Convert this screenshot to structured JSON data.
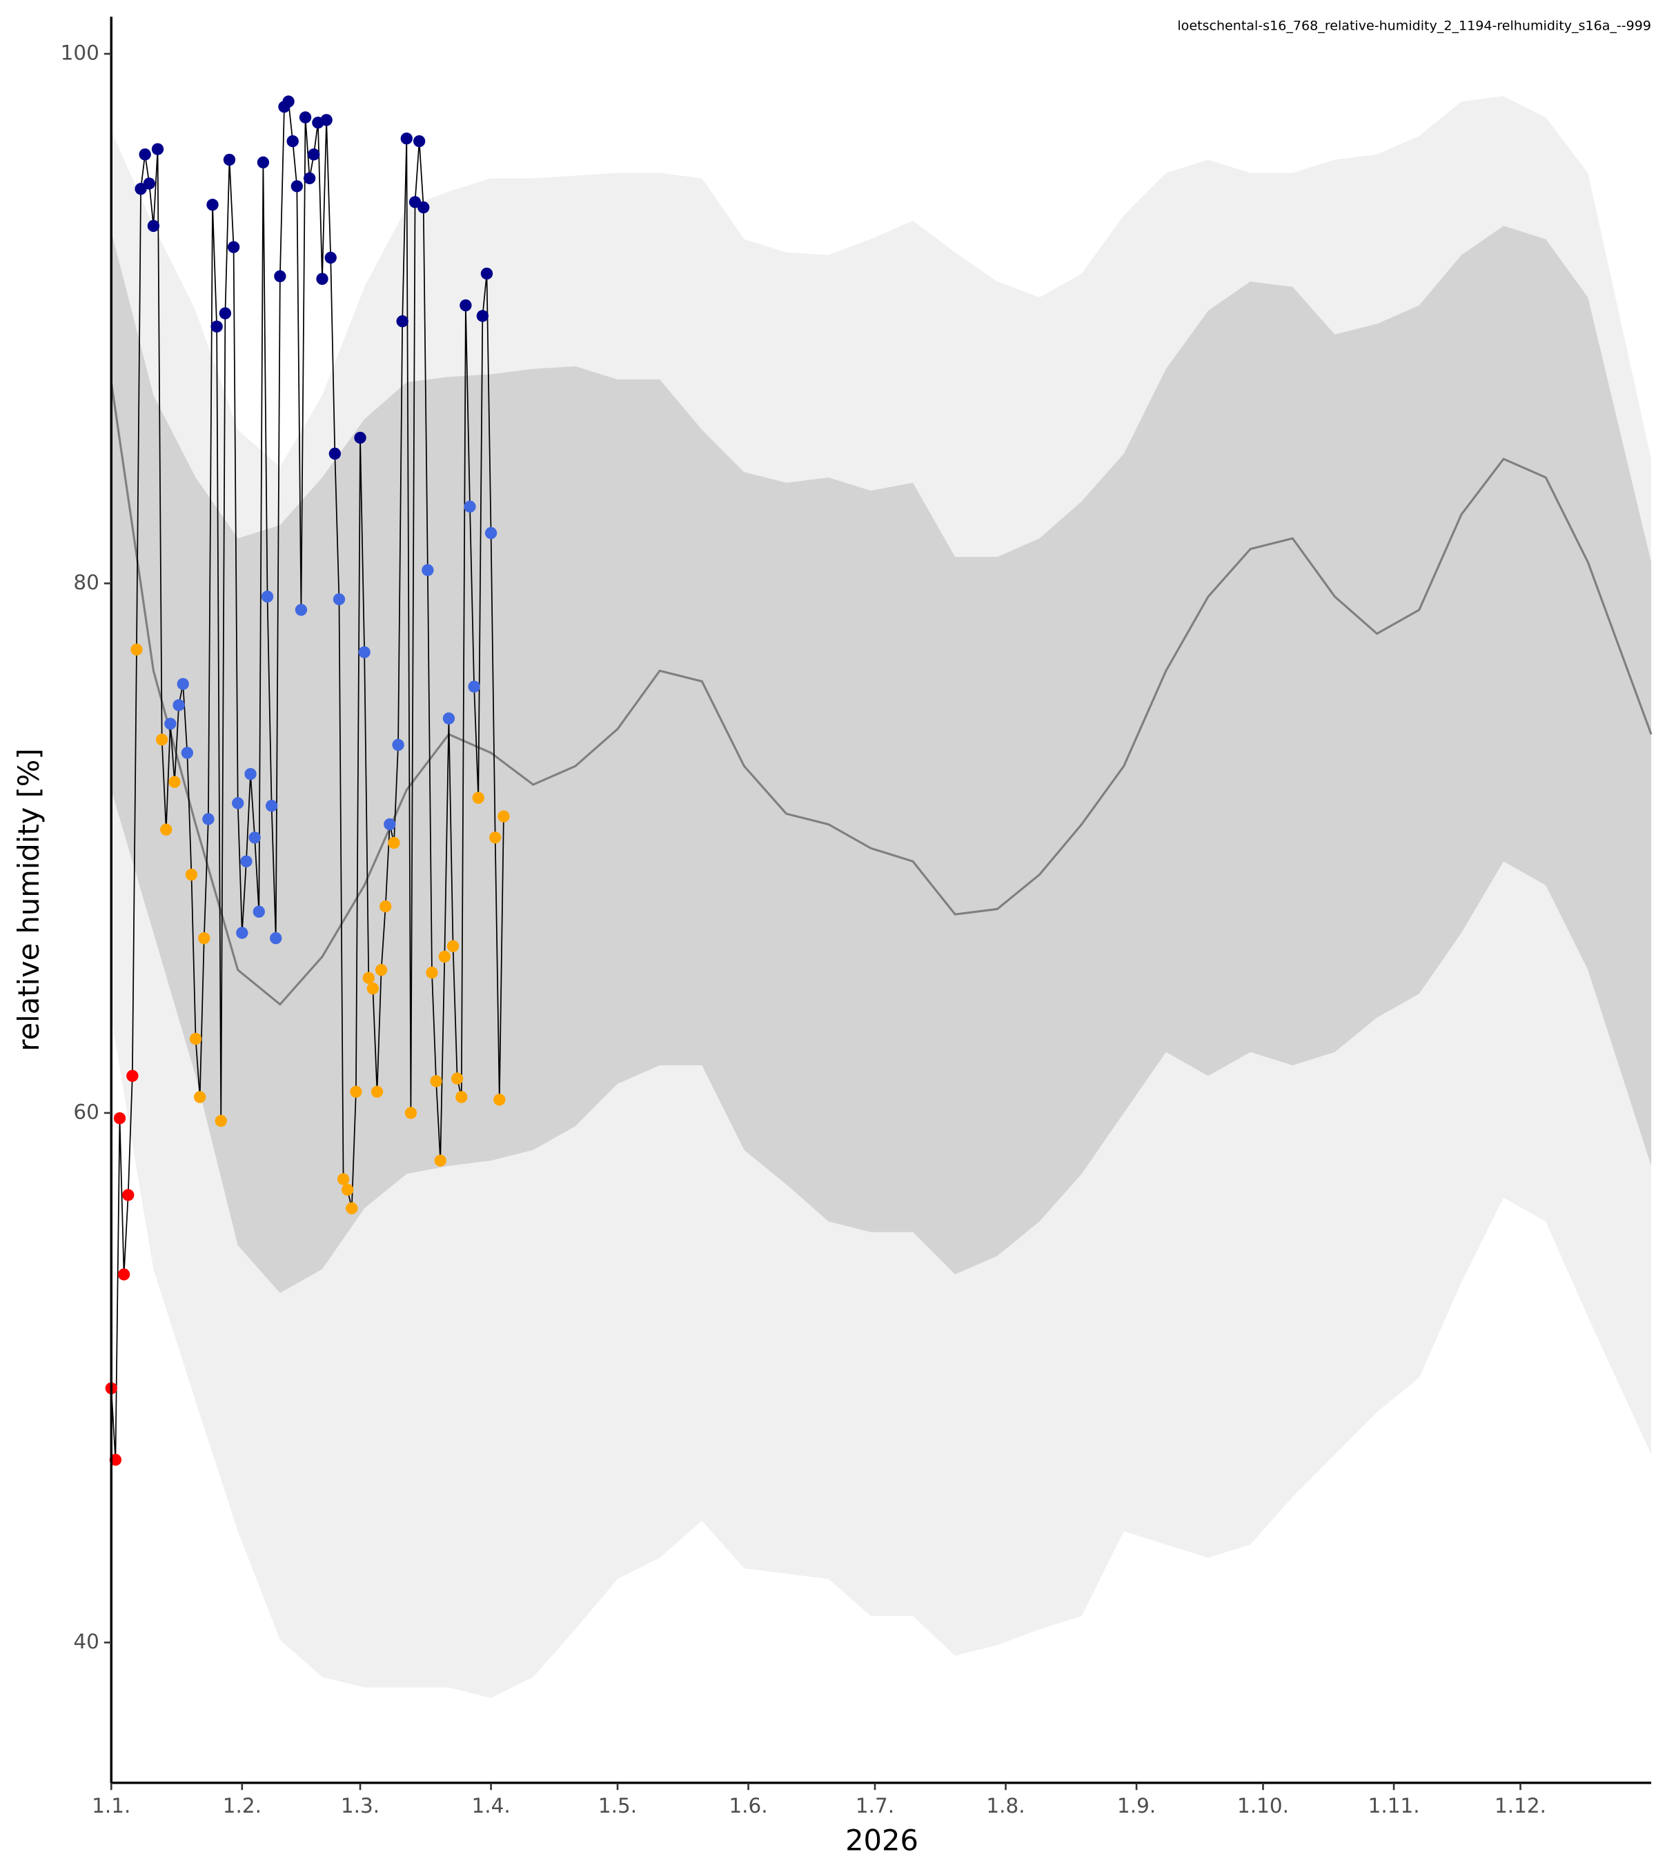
{
  "chart_data": {
    "type": "line",
    "subtitle": "loetschental-s16_768_relative-humidity_2_1194-relhumidity_s16a_--999",
    "x_label": "2026",
    "y_label": "relative humidity [%]",
    "xlim": [
      0,
      365
    ],
    "xticks": [
      {
        "value": 0,
        "label": "1.1."
      },
      {
        "value": 31,
        "label": "1.2."
      },
      {
        "value": 59,
        "label": "1.3."
      },
      {
        "value": 90,
        "label": "1.4."
      },
      {
        "value": 120,
        "label": "1.5."
      },
      {
        "value": 151,
        "label": "1.6."
      },
      {
        "value": 181,
        "label": "1.7."
      },
      {
        "value": 212,
        "label": "1.8."
      },
      {
        "value": 243,
        "label": "1.9."
      },
      {
        "value": 273,
        "label": "1.10."
      },
      {
        "value": 304,
        "label": "1.11."
      },
      {
        "value": 334,
        "label": "1.12."
      }
    ],
    "ylim": [
      34.7,
      101.4
    ],
    "yticks": [
      40,
      60,
      80,
      100
    ],
    "line_color": "#000000",
    "series": [
      {
        "x": [
          0,
          1,
          2,
          3,
          4,
          5,
          6,
          7,
          8,
          9,
          10,
          11,
          12,
          13,
          14,
          15,
          16,
          17,
          18,
          19,
          20,
          21,
          22,
          23,
          24,
          25,
          26,
          27,
          28,
          29,
          30,
          31,
          32,
          33,
          34,
          35,
          36,
          37,
          38,
          39,
          40,
          41,
          42,
          43,
          44,
          45,
          46,
          47,
          48,
          49,
          50,
          51,
          52,
          53,
          54,
          55,
          56,
          57,
          58,
          59,
          60,
          61,
          62,
          63,
          64,
          65,
          66,
          67,
          68,
          69,
          70,
          71,
          72,
          73,
          74,
          75,
          76,
          77,
          78,
          79,
          80,
          81,
          82,
          83,
          84,
          85,
          86,
          87,
          88,
          89,
          90,
          91,
          92,
          93
        ],
        "values": [
          49.6,
          46.9,
          59.8,
          53.9,
          56.9,
          61.4,
          77.5,
          94.9,
          96.2,
          95.1,
          93.5,
          96.4,
          74.1,
          70.7,
          74.7,
          72.5,
          75.4,
          76.2,
          73.6,
          69.0,
          62.8,
          60.6,
          66.6,
          71.1,
          94.3,
          89.7,
          59.7,
          90.2,
          96.0,
          92.7,
          71.7,
          66.8,
          69.5,
          72.8,
          70.4,
          67.6,
          95.9,
          79.5,
          71.6,
          66.6,
          91.6,
          98.0,
          98.2,
          96.7,
          95.0,
          79.0,
          97.6,
          95.3,
          96.2,
          97.4,
          91.5,
          97.5,
          92.3,
          84.9,
          79.4,
          57.5,
          57.1,
          56.4,
          60.8,
          85.5,
          77.4,
          65.1,
          64.7,
          60.8,
          65.4,
          67.8,
          70.9,
          70.2,
          73.9,
          89.9,
          96.8,
          60.0,
          94.4,
          96.7,
          94.2,
          80.5,
          65.3,
          61.2,
          58.2,
          65.9,
          74.9,
          66.3,
          61.3,
          60.6,
          90.5,
          82.9,
          76.1,
          71.9,
          90.1,
          91.7,
          81.9,
          70.4,
          60.5,
          71.2
        ],
        "colors": [
          "#ff0000",
          "#ff0000",
          "#ff0000",
          "#ff0000",
          "#ff0000",
          "#ff0000",
          "#ffa500",
          "#00008b",
          "#00008b",
          "#00008b",
          "#00008b",
          "#00008b",
          "#ffa500",
          "#ffa500",
          "#4169e1",
          "#ffa500",
          "#4169e1",
          "#4169e1",
          "#4169e1",
          "#ffa500",
          "#ffa500",
          "#ffa500",
          "#ffa500",
          "#4169e1",
          "#00008b",
          "#00008b",
          "#ffa500",
          "#00008b",
          "#00008b",
          "#00008b",
          "#4169e1",
          "#4169e1",
          "#4169e1",
          "#4169e1",
          "#4169e1",
          "#4169e1",
          "#00008b",
          "#4169e1",
          "#4169e1",
          "#4169e1",
          "#00008b",
          "#00008b",
          "#00008b",
          "#00008b",
          "#00008b",
          "#4169e1",
          "#00008b",
          "#00008b",
          "#00008b",
          "#00008b",
          "#00008b",
          "#00008b",
          "#00008b",
          "#00008b",
          "#4169e1",
          "#ffa500",
          "#ffa500",
          "#ffa500",
          "#ffa500",
          "#00008b",
          "#4169e1",
          "#ffa500",
          "#ffa500",
          "#ffa500",
          "#ffa500",
          "#ffa500",
          "#4169e1",
          "#ffa500",
          "#4169e1",
          "#00008b",
          "#00008b",
          "#ffa500",
          "#00008b",
          "#00008b",
          "#00008b",
          "#4169e1",
          "#ffa500",
          "#ffa500",
          "#ffa500",
          "#ffa500",
          "#4169e1",
          "#ffa500",
          "#ffa500",
          "#ffa500",
          "#00008b",
          "#4169e1",
          "#4169e1",
          "#ffa500",
          "#00008b",
          "#00008b",
          "#4169e1",
          "#ffa500",
          "#ffa500",
          "#ffa500"
        ]
      }
    ],
    "bands": {
      "x": [
        0,
        10,
        20,
        30,
        40,
        50,
        60,
        70,
        80,
        90,
        100,
        110,
        120,
        130,
        140,
        150,
        160,
        170,
        180,
        190,
        200,
        210,
        220,
        230,
        240,
        250,
        260,
        270,
        280,
        290,
        300,
        310,
        320,
        330,
        340,
        350,
        365
      ],
      "median": [
        87.6,
        76.7,
        70.9,
        65.4,
        64.1,
        65.9,
        68.6,
        72.2,
        74.3,
        73.6,
        72.4,
        73.1,
        74.5,
        76.7,
        76.3,
        73.1,
        71.3,
        70.9,
        70.0,
        69.5,
        67.5,
        67.7,
        69.0,
        70.9,
        73.1,
        76.7,
        79.5,
        81.3,
        81.7,
        79.5,
        78.1,
        79.0,
        82.6,
        84.7,
        84.0,
        80.8,
        74.3
      ],
      "inner_upper": [
        93.3,
        87.1,
        84.0,
        81.7,
        82.2,
        84.0,
        86.2,
        87.6,
        87.8,
        87.9,
        88.1,
        88.2,
        87.7,
        87.7,
        85.8,
        84.2,
        83.8,
        84.0,
        83.5,
        83.8,
        81.0,
        81.0,
        81.7,
        83.1,
        84.9,
        88.1,
        90.3,
        91.4,
        91.2,
        89.4,
        89.8,
        90.5,
        92.4,
        93.5,
        93.0,
        90.8,
        80.8
      ],
      "inner_lower": [
        72.2,
        66.8,
        61.4,
        55.0,
        53.2,
        54.1,
        56.4,
        57.7,
        58.0,
        58.2,
        58.6,
        59.5,
        61.1,
        61.8,
        61.8,
        58.6,
        57.3,
        55.9,
        55.5,
        55.5,
        53.9,
        54.6,
        55.9,
        57.7,
        60.0,
        62.3,
        61.4,
        62.3,
        61.8,
        62.3,
        63.6,
        64.5,
        66.8,
        69.5,
        68.6,
        65.4,
        58.0
      ],
      "outer_upper": [
        97.1,
        93.5,
        90.3,
        85.8,
        84.4,
        87.1,
        91.2,
        94.2,
        94.8,
        95.3,
        95.3,
        95.4,
        95.5,
        95.5,
        95.3,
        93.0,
        92.5,
        92.4,
        93.0,
        93.7,
        92.5,
        91.4,
        90.8,
        91.7,
        93.9,
        95.5,
        96.0,
        95.5,
        95.5,
        96.0,
        96.2,
        96.9,
        98.2,
        98.4,
        97.6,
        95.5,
        84.7
      ],
      "outer_lower": [
        63.6,
        54.1,
        49.1,
        44.2,
        40.1,
        38.7,
        38.3,
        38.3,
        38.3,
        37.9,
        38.7,
        40.5,
        42.4,
        43.2,
        44.6,
        42.8,
        42.6,
        42.4,
        41.0,
        41.0,
        39.5,
        39.9,
        40.5,
        41.0,
        44.2,
        43.7,
        43.2,
        43.7,
        45.5,
        47.1,
        48.7,
        50.0,
        53.6,
        56.8,
        55.9,
        52.3,
        47.1
      ],
      "outer_color": "#f0f0f0",
      "inner_color": "#d3d3d3",
      "median_color": "#7f7f7f"
    }
  }
}
